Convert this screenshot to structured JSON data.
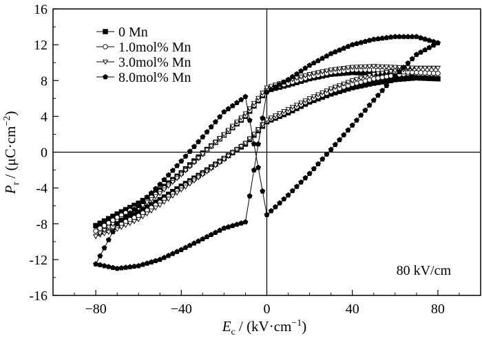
{
  "chart_data": {
    "type": "line",
    "title": "",
    "xlabel": {
      "main": "E",
      "sub": "c",
      "unit": " / (kV·cm",
      "sup": "−1",
      "close": ")"
    },
    "ylabel": {
      "main": "P",
      "sub": "r",
      "unit": " / (μC·cm",
      "sup": "−2",
      "close": ")"
    },
    "xlim": [
      -100,
      100
    ],
    "ylim": [
      -16,
      16
    ],
    "x_ticks": [
      -80,
      -40,
      0,
      40,
      80
    ],
    "x_tick_labels": [
      "−80",
      "−40",
      "0",
      "40",
      "80"
    ],
    "y_ticks": [
      -16,
      -12,
      -8,
      -4,
      0,
      4,
      8,
      12,
      16
    ],
    "y_tick_labels": [
      "-16",
      "-12",
      "-8",
      "-4",
      "0",
      "4",
      "8",
      "12",
      "16"
    ],
    "annotation": "80 kV/cm",
    "legend_position": "top-left",
    "series": [
      {
        "name": "0 Mn",
        "marker": "square-filled",
        "upper": [
          [
            -80,
            -8.2
          ],
          [
            -70,
            -7.7
          ],
          [
            -60,
            -6.7
          ],
          [
            -50,
            -5.3
          ],
          [
            -40,
            -3.8
          ],
          [
            -30,
            -2.3
          ],
          [
            -20,
            -0.7
          ],
          [
            -10,
            0.9
          ],
          [
            0,
            3.4
          ],
          [
            10,
            4.4
          ],
          [
            20,
            5.6
          ],
          [
            30,
            6.5
          ],
          [
            40,
            7.2
          ],
          [
            50,
            7.7
          ],
          [
            60,
            8.1
          ],
          [
            70,
            8.3
          ],
          [
            80,
            8.2
          ]
        ],
        "lower": [
          [
            -80,
            -8.2
          ],
          [
            -70,
            -6.9
          ],
          [
            -60,
            -5.7
          ],
          [
            -50,
            -4.2
          ],
          [
            -40,
            -2.3
          ],
          [
            -30,
            -0.1
          ],
          [
            -20,
            1.9
          ],
          [
            -10,
            4.0
          ],
          [
            0,
            6.9
          ],
          [
            10,
            7.5
          ],
          [
            20,
            8.2
          ],
          [
            30,
            8.7
          ],
          [
            40,
            8.9
          ],
          [
            50,
            8.8
          ],
          [
            60,
            8.5
          ],
          [
            70,
            8.3
          ],
          [
            80,
            8.2
          ]
        ]
      },
      {
        "name": "1.0mol% Mn",
        "marker": "circle-open",
        "upper": [
          [
            -80,
            -8.8
          ],
          [
            -70,
            -8.2
          ],
          [
            -60,
            -7.1
          ],
          [
            -50,
            -5.6
          ],
          [
            -40,
            -4.0
          ],
          [
            -30,
            -2.4
          ],
          [
            -20,
            -0.7
          ],
          [
            -10,
            1.0
          ],
          [
            0,
            3.5
          ],
          [
            10,
            4.6
          ],
          [
            20,
            5.8
          ],
          [
            30,
            6.8
          ],
          [
            40,
            7.6
          ],
          [
            50,
            8.2
          ],
          [
            60,
            8.6
          ],
          [
            70,
            8.9
          ],
          [
            80,
            8.8
          ]
        ],
        "lower": [
          [
            -80,
            -8.8
          ],
          [
            -70,
            -7.3
          ],
          [
            -60,
            -6.0
          ],
          [
            -50,
            -4.4
          ],
          [
            -40,
            -2.4
          ],
          [
            -30,
            -0.2
          ],
          [
            -20,
            1.9
          ],
          [
            -10,
            4.1
          ],
          [
            0,
            7.0
          ],
          [
            10,
            7.7
          ],
          [
            20,
            8.4
          ],
          [
            30,
            8.9
          ],
          [
            40,
            9.2
          ],
          [
            50,
            9.2
          ],
          [
            60,
            9.0
          ],
          [
            70,
            8.9
          ],
          [
            80,
            8.8
          ]
        ]
      },
      {
        "name": "3.0mol% Mn",
        "marker": "triangle-down-open",
        "upper": [
          [
            -80,
            -9.4
          ],
          [
            -70,
            -8.6
          ],
          [
            -60,
            -7.5
          ],
          [
            -50,
            -5.9
          ],
          [
            -40,
            -4.2
          ],
          [
            -30,
            -2.5
          ],
          [
            -20,
            -0.8
          ],
          [
            -10,
            1.0
          ],
          [
            0,
            3.6
          ],
          [
            10,
            4.8
          ],
          [
            20,
            6.0
          ],
          [
            30,
            7.1
          ],
          [
            40,
            8.0
          ],
          [
            50,
            8.7
          ],
          [
            60,
            9.1
          ],
          [
            70,
            9.4
          ],
          [
            80,
            9.4
          ]
        ],
        "lower": [
          [
            -80,
            -9.4
          ],
          [
            -70,
            -7.7
          ],
          [
            -60,
            -6.3
          ],
          [
            -50,
            -4.6
          ],
          [
            -40,
            -2.5
          ],
          [
            -30,
            -0.2
          ],
          [
            -20,
            2.0
          ],
          [
            -10,
            4.3
          ],
          [
            0,
            7.2
          ],
          [
            10,
            8.0
          ],
          [
            20,
            8.7
          ],
          [
            30,
            9.2
          ],
          [
            40,
            9.5
          ],
          [
            50,
            9.6
          ],
          [
            60,
            9.5
          ],
          [
            70,
            9.4
          ],
          [
            80,
            9.4
          ]
        ]
      },
      {
        "name": "8.0mol% Mn",
        "marker": "pentagon-filled",
        "upper": [
          [
            -80,
            -12.5
          ],
          [
            -70,
            -13.0
          ],
          [
            -60,
            -12.7
          ],
          [
            -50,
            -12.0
          ],
          [
            -40,
            -10.9
          ],
          [
            -30,
            -9.7
          ],
          [
            -20,
            -8.5
          ],
          [
            -10,
            -7.8
          ],
          [
            0,
            6.7
          ],
          [
            10,
            8.1
          ],
          [
            20,
            9.7
          ],
          [
            30,
            11.0
          ],
          [
            40,
            12.0
          ],
          [
            50,
            12.6
          ],
          [
            60,
            12.9
          ],
          [
            70,
            12.9
          ],
          [
            80,
            12.2
          ]
        ],
        "lower": [
          [
            -80,
            -12.5
          ],
          [
            -70,
            -8.0
          ],
          [
            -60,
            -6.0
          ],
          [
            -50,
            -3.6
          ],
          [
            -40,
            -1.0
          ],
          [
            -30,
            1.7
          ],
          [
            -20,
            4.5
          ],
          [
            -10,
            6.2
          ],
          [
            0,
            -7.0
          ],
          [
            10,
            -4.8
          ],
          [
            20,
            -2.4
          ],
          [
            30,
            0.3
          ],
          [
            40,
            3.0
          ],
          [
            50,
            5.8
          ],
          [
            60,
            8.5
          ],
          [
            70,
            10.9
          ],
          [
            80,
            12.2
          ]
        ]
      }
    ]
  }
}
